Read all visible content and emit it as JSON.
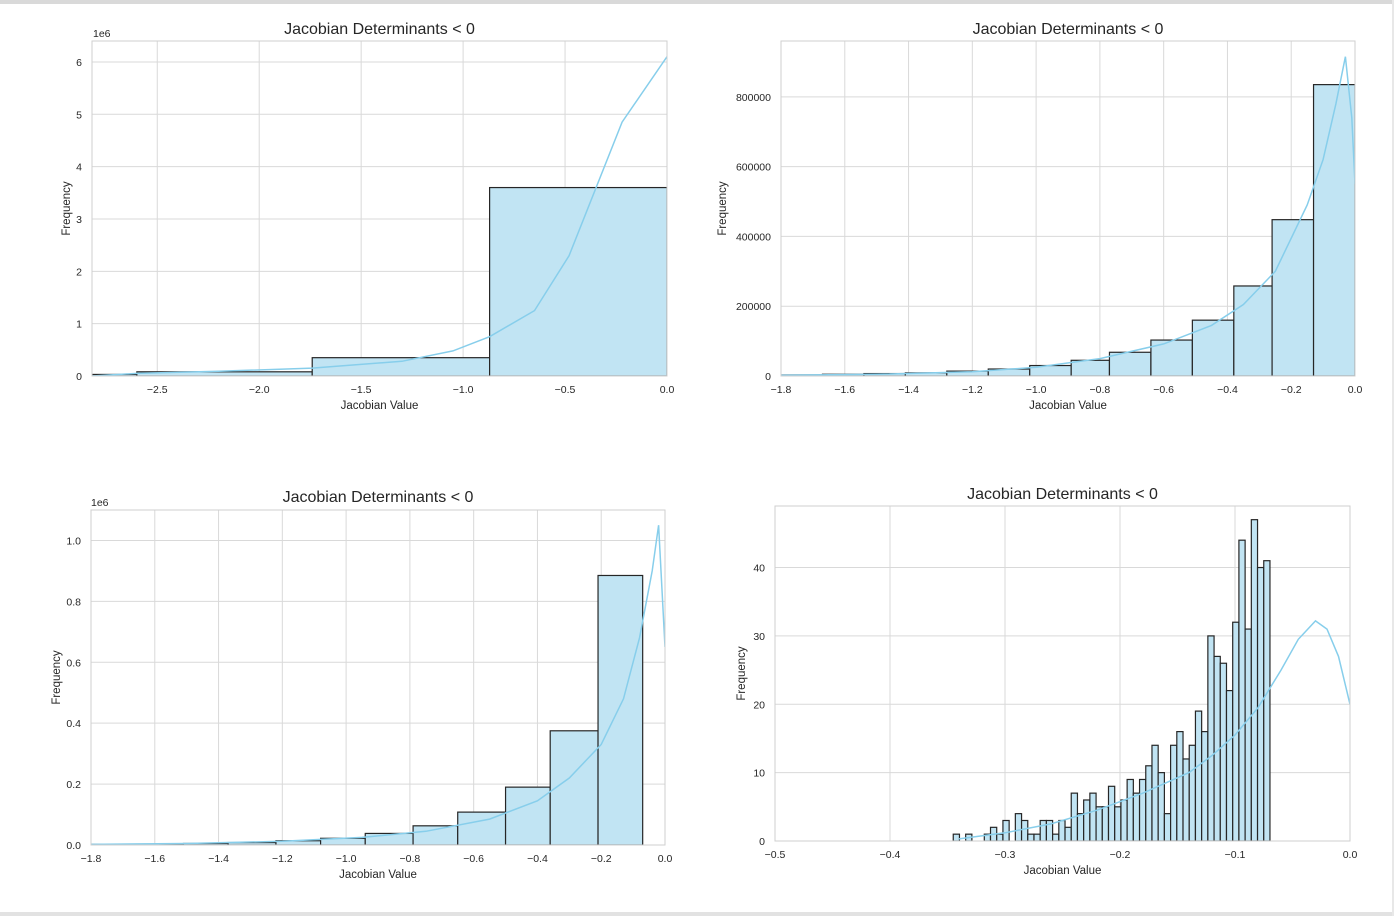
{
  "colors": {
    "bar_fill": "#c1e4f3",
    "bar_edge": "#262626",
    "kde": "#87ceeb",
    "grid": "#d9d9d9",
    "spine": "#cfcfcf"
  },
  "chart_data": [
    {
      "type": "bar",
      "title": "Jacobian Determinants < 0",
      "xlabel": "Jacobian Value",
      "ylabel": "Frequency",
      "scale_label": "1e6",
      "xlim": [
        -2.82,
        0.0
      ],
      "ylim": [
        0,
        6.4
      ],
      "xticks": [
        -2.5,
        -2.0,
        -1.5,
        -1.0,
        -0.5,
        0.0
      ],
      "xtick_labels": [
        "−2.5",
        "−2.0",
        "−1.5",
        "−1.0",
        "−0.5",
        "0.0"
      ],
      "yticks": [
        0,
        1,
        2,
        3,
        4,
        5,
        6
      ],
      "ytick_labels": [
        "0",
        "1",
        "2",
        "3",
        "4",
        "5",
        "6"
      ],
      "bin_edges": [
        -2.82,
        -2.6,
        -1.74,
        -0.87,
        0.0
      ],
      "counts": [
        0.03,
        0.08,
        0.35,
        3.6
      ],
      "kde_x": [
        -2.82,
        -2.6,
        -2.2,
        -1.74,
        -1.3,
        -1.05,
        -0.87,
        -0.65,
        -0.48,
        -0.22,
        0.0
      ],
      "kde_y": [
        0.0,
        0.05,
        0.09,
        0.15,
        0.28,
        0.48,
        0.75,
        1.25,
        2.3,
        4.85,
        6.1
      ]
    },
    {
      "type": "bar",
      "title": "Jacobian Determinants < 0",
      "xlabel": "Jacobian Value",
      "ylabel": "Frequency",
      "scale_label": "",
      "xlim": [
        -1.8,
        0.0
      ],
      "ylim": [
        0,
        960000
      ],
      "xticks": [
        -1.8,
        -1.6,
        -1.4,
        -1.2,
        -1.0,
        -0.8,
        -0.6,
        -0.4,
        -0.2,
        0.0
      ],
      "xtick_labels": [
        "−1.8",
        "−1.6",
        "−1.4",
        "−1.2",
        "−1.0",
        "−0.8",
        "−0.6",
        "−0.4",
        "−0.2",
        "0.0"
      ],
      "yticks": [
        0,
        200000,
        400000,
        600000,
        800000
      ],
      "ytick_labels": [
        "0",
        "200000",
        "400000",
        "600000",
        "800000"
      ],
      "bin_edges": [
        -1.8,
        -1.67,
        -1.54,
        -1.41,
        -1.28,
        -1.15,
        -1.02,
        -0.89,
        -0.77,
        -0.64,
        -0.51,
        -0.38,
        -0.26,
        -0.13,
        0.0
      ],
      "counts": [
        3000,
        5000,
        7000,
        9000,
        14000,
        20000,
        30000,
        45000,
        68000,
        103000,
        160000,
        258000,
        448000,
        835000
      ],
      "kde_x": [
        -1.8,
        -1.5,
        -1.2,
        -1.0,
        -0.8,
        -0.6,
        -0.45,
        -0.35,
        -0.25,
        -0.15,
        -0.1,
        -0.06,
        -0.03,
        -0.01,
        0.0
      ],
      "kde_y": [
        2000,
        5000,
        12000,
        25000,
        50000,
        92000,
        145000,
        205000,
        300000,
        490000,
        620000,
        780000,
        915000,
        740000,
        550000
      ]
    },
    {
      "type": "bar",
      "title": "Jacobian Determinants < 0",
      "xlabel": "Jacobian Value",
      "ylabel": "Frequency",
      "scale_label": "1e6",
      "xlim": [
        -1.8,
        0.0
      ],
      "ylim": [
        0,
        1.1
      ],
      "xticks": [
        -1.8,
        -1.6,
        -1.4,
        -1.2,
        -1.0,
        -0.8,
        -0.6,
        -0.4,
        -0.2,
        0.0
      ],
      "xtick_labels": [
        "−1.8",
        "−1.6",
        "−1.4",
        "−1.2",
        "−1.0",
        "−0.8",
        "−0.6",
        "−0.4",
        "−0.2",
        "0.0"
      ],
      "yticks": [
        0.0,
        0.2,
        0.4,
        0.6,
        0.8,
        1.0
      ],
      "ytick_labels": [
        "0.0",
        "0.2",
        "0.4",
        "0.6",
        "0.8",
        "1.0"
      ],
      "bin_edges": [
        -1.8,
        -1.66,
        -1.51,
        -1.37,
        -1.22,
        -1.08,
        -0.94,
        -0.79,
        -0.65,
        -0.5,
        -0.36,
        -0.21,
        -0.07,
        0.0
      ],
      "counts": [
        0.002,
        0.003,
        0.005,
        0.008,
        0.014,
        0.022,
        0.038,
        0.063,
        0.108,
        0.19,
        0.375,
        0.885,
        0.0
      ],
      "kde_x": [
        -1.8,
        -1.5,
        -1.2,
        -0.95,
        -0.75,
        -0.55,
        -0.4,
        -0.3,
        -0.2,
        -0.13,
        -0.08,
        -0.04,
        -0.02,
        0.0
      ],
      "kde_y": [
        0.002,
        0.005,
        0.012,
        0.025,
        0.045,
        0.085,
        0.145,
        0.22,
        0.33,
        0.48,
        0.68,
        0.9,
        1.05,
        0.65
      ]
    },
    {
      "type": "bar",
      "title": "Jacobian Determinants < 0",
      "xlabel": "Jacobian Value",
      "ylabel": "Frequency",
      "scale_label": "",
      "xlim": [
        -0.5,
        0.0
      ],
      "ylim": [
        0,
        49
      ],
      "xticks": [
        -0.5,
        -0.4,
        -0.3,
        -0.2,
        -0.1,
        0.0
      ],
      "xtick_labels": [
        "−0.5",
        "−0.4",
        "−0.3",
        "−0.2",
        "−0.1",
        "0.0"
      ],
      "yticks": [
        0,
        10,
        20,
        30,
        40
      ],
      "ytick_labels": [
        "0",
        "10",
        "20",
        "30",
        "40"
      ],
      "bin_start": -0.345,
      "bin_width": 0.0054,
      "counts": [
        1,
        0,
        1,
        0,
        0,
        1,
        2,
        1,
        3,
        0,
        4,
        3,
        1,
        1,
        3,
        3,
        1,
        3,
        2,
        7,
        4,
        6,
        7,
        5,
        5,
        8,
        5,
        6,
        9,
        7,
        9,
        11,
        14,
        10,
        4,
        14,
        16,
        12,
        14,
        19,
        16,
        30,
        27,
        26,
        22,
        32,
        44,
        31,
        47,
        40,
        41
      ],
      "kde_x": [
        -0.34,
        -0.3,
        -0.26,
        -0.22,
        -0.18,
        -0.14,
        -0.12,
        -0.1,
        -0.08,
        -0.06,
        -0.045,
        -0.03,
        -0.02,
        -0.01,
        0.0
      ],
      "kde_y": [
        0.3,
        1.2,
        2.5,
        4.5,
        7.0,
        10.0,
        12.5,
        15.5,
        19.5,
        25.0,
        29.5,
        32.2,
        31.0,
        27.0,
        20.0
      ]
    }
  ]
}
